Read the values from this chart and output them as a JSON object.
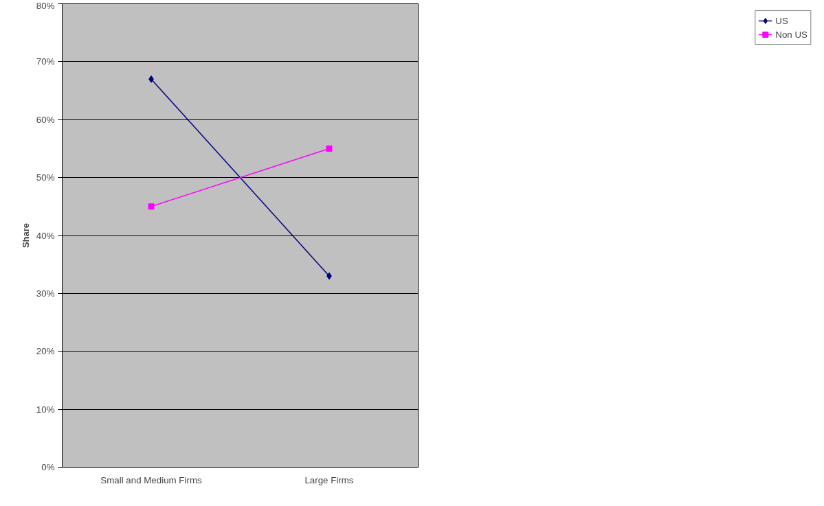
{
  "chart_data": {
    "type": "line",
    "ylabel": "Share",
    "categories": [
      "Small and Medium Firms",
      "Large Firms"
    ],
    "series": [
      {
        "name": "US",
        "color": "#000080",
        "marker": "diamond",
        "values": [
          67,
          33
        ]
      },
      {
        "name": "Non US",
        "color": "#ff00ff",
        "marker": "square",
        "values": [
          45,
          55
        ]
      }
    ],
    "ylim": [
      0,
      80
    ],
    "yticks": [
      {
        "value": 0,
        "label": "0%"
      },
      {
        "value": 10,
        "label": "10%"
      },
      {
        "value": 20,
        "label": "20%"
      },
      {
        "value": 30,
        "label": "30%"
      },
      {
        "value": 40,
        "label": "40%"
      },
      {
        "value": 50,
        "label": "50%"
      },
      {
        "value": 60,
        "label": "60%"
      },
      {
        "value": 70,
        "label": "70%"
      },
      {
        "value": 80,
        "label": "80%"
      }
    ],
    "grid": "y",
    "legend": "right",
    "line_style": "solid"
  }
}
